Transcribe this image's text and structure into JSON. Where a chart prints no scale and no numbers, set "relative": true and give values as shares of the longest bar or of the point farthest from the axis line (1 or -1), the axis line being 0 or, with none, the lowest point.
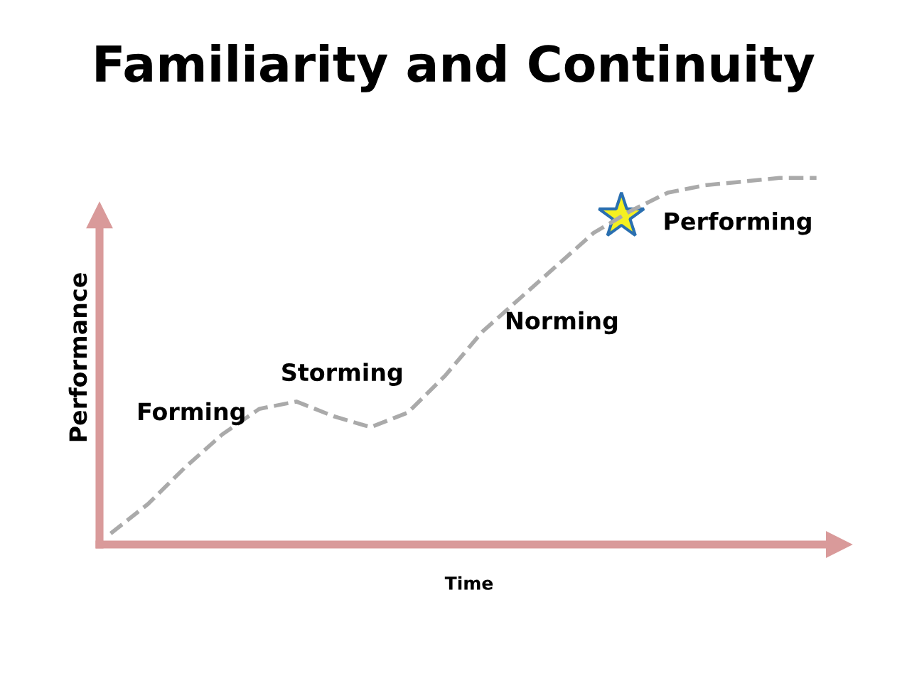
{
  "chart_data": {
    "type": "line",
    "title": "Familiarity and Continuity",
    "xlabel": "Time",
    "ylabel": "Performance",
    "relative": true,
    "categories": [
      null,
      null,
      null,
      null,
      null,
      null,
      null,
      null,
      null,
      null,
      null,
      null,
      null,
      null,
      null,
      null,
      null,
      null,
      null,
      null
    ],
    "series": [
      {
        "color": "#aaaaaa",
        "values": [
          0.03,
          0.11,
          0.21,
          0.3,
          0.37,
          0.39,
          0.35,
          0.32,
          0.36,
          0.46,
          0.58,
          0.67,
          0.76,
          0.85,
          0.91,
          0.96,
          0.98,
          0.99,
          1.0,
          1.0
        ]
      }
    ],
    "line_style": "dashed",
    "marker": "none",
    "legend": false,
    "annotations": [
      "Forming",
      "Storming",
      "Norming",
      "Performing"
    ]
  }
}
